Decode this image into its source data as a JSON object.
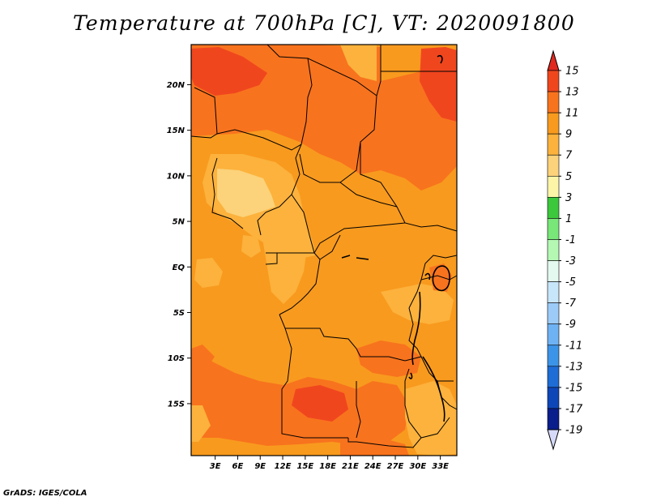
{
  "title": "Temperature at 700hPa [C], VT: 2020091800",
  "credit": "GrADS: IGES/COLA",
  "map": {
    "lon_range": [
      -0.2,
      35.2
    ],
    "lat_range": [
      -20.7,
      24.4
    ],
    "lat_ticks": [
      {
        "value": 20,
        "label": "20N"
      },
      {
        "value": 15,
        "label": "15N"
      },
      {
        "value": 10,
        "label": "10N"
      },
      {
        "value": 5,
        "label": "5N"
      },
      {
        "value": 0,
        "label": "EQ"
      },
      {
        "value": -5,
        "label": "5S"
      },
      {
        "value": -10,
        "label": "10S"
      },
      {
        "value": -15,
        "label": "15S"
      }
    ],
    "lon_ticks": [
      {
        "value": 3,
        "label": "3E"
      },
      {
        "value": 6,
        "label": "6E"
      },
      {
        "value": 9,
        "label": "9E"
      },
      {
        "value": 12,
        "label": "12E"
      },
      {
        "value": 15,
        "label": "15E"
      },
      {
        "value": 18,
        "label": "18E"
      },
      {
        "value": 21,
        "label": "21E"
      },
      {
        "value": 24,
        "label": "24E"
      },
      {
        "value": 27,
        "label": "27E"
      },
      {
        "value": 30,
        "label": "30E"
      },
      {
        "value": 33,
        "label": "33E"
      }
    ]
  },
  "colorbar": {
    "levels": [
      "15",
      "13",
      "11",
      "9",
      "7",
      "5",
      "3",
      "1",
      "-1",
      "-3",
      "-5",
      "-7",
      "-9",
      "-11",
      "-13",
      "-15",
      "-17",
      "-19"
    ],
    "colors": [
      "#e0281e",
      "#f0461e",
      "#f8731e",
      "#f89a1e",
      "#fcb23c",
      "#fcd27a",
      "#fcf5a8",
      "#3cc83c",
      "#78e678",
      "#b4f8b4",
      "#e4faf0",
      "#c8e6fa",
      "#9ccbf8",
      "#6eb2f4",
      "#3c94e8",
      "#1e6cd6",
      "#0e46b8",
      "#0a1e8c",
      "#08086e",
      "#d6daf8"
    ],
    "top_arrow_color": "#e0281e",
    "bottom_arrow_color": "#d6daf8"
  },
  "field_colors": {
    "lt9": "#fcb23c",
    "r9_11": "#f89a1e",
    "r11_13": "#f8731e",
    "gt13": "#f0461e"
  }
}
